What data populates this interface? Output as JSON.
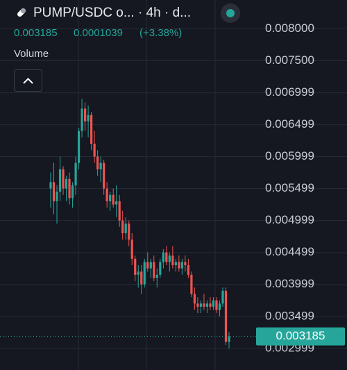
{
  "chart_data": {
    "type": "candlestick",
    "title": "PUMP/USDC o... · 4h · d...",
    "price": 0.003185,
    "change": "0.0001039",
    "change_percent": "(+3.38%)",
    "indicator": "Volume",
    "last_price": 0.003185,
    "up_color": "#26a69a",
    "down_color": "#ef5350",
    "grid": true,
    "ylim": [
      0.00266,
      0.00845
    ],
    "yticks": [
      {
        "value": 0.008,
        "label": "0.008000"
      },
      {
        "value": 0.0075,
        "label": "0.007500"
      },
      0.006999,
      0.006499,
      0.005999,
      0.005499,
      0.004999,
      0.004499,
      0.003999,
      0.003499,
      0.002999
    ],
    "ohlc": [
      [
        0.0055,
        0.00575,
        0.0052,
        0.0056
      ],
      [
        0.0056,
        0.0059,
        0.0051,
        0.0053
      ],
      [
        0.0053,
        0.00555,
        0.00495,
        0.00545
      ],
      [
        0.00545,
        0.006,
        0.0053,
        0.0058
      ],
      [
        0.0058,
        0.00585,
        0.0054,
        0.0055
      ],
      [
        0.0055,
        0.0057,
        0.0053,
        0.00565
      ],
      [
        0.00565,
        0.00575,
        0.00525,
        0.00535
      ],
      [
        0.00535,
        0.0056,
        0.0052,
        0.00555
      ],
      [
        0.00555,
        0.006,
        0.0054,
        0.0059
      ],
      [
        0.0059,
        0.00645,
        0.0058,
        0.0064
      ],
      [
        0.0064,
        0.0069,
        0.0063,
        0.00675
      ],
      [
        0.00675,
        0.00685,
        0.0064,
        0.00655
      ],
      [
        0.00655,
        0.0068,
        0.0063,
        0.00665
      ],
      [
        0.00665,
        0.0067,
        0.0061,
        0.0062
      ],
      [
        0.0062,
        0.0064,
        0.0059,
        0.006
      ],
      [
        0.006,
        0.0061,
        0.0057,
        0.0058
      ],
      [
        0.0058,
        0.006,
        0.0056,
        0.0059
      ],
      [
        0.0059,
        0.00595,
        0.0054,
        0.0055
      ],
      [
        0.0055,
        0.0056,
        0.0052,
        0.0053
      ],
      [
        0.0053,
        0.00545,
        0.00515,
        0.0054
      ],
      [
        0.0054,
        0.0055,
        0.0052,
        0.00525
      ],
      [
        0.00525,
        0.00555,
        0.00505,
        0.0053
      ],
      [
        0.0053,
        0.0054,
        0.0049,
        0.005
      ],
      [
        0.005,
        0.00515,
        0.0047,
        0.0048
      ],
      [
        0.0048,
        0.00505,
        0.0047,
        0.00495
      ],
      [
        0.00495,
        0.005,
        0.0046,
        0.0047
      ],
      [
        0.0047,
        0.0048,
        0.0043,
        0.0044
      ],
      [
        0.0044,
        0.00445,
        0.00405,
        0.00415
      ],
      [
        0.00415,
        0.0043,
        0.00395,
        0.0042
      ],
      [
        0.0042,
        0.0043,
        0.00385,
        0.004
      ],
      [
        0.004,
        0.0044,
        0.00395,
        0.00435
      ],
      [
        0.00435,
        0.0045,
        0.0042,
        0.00425
      ],
      [
        0.00425,
        0.0044,
        0.0041,
        0.00435
      ],
      [
        0.00435,
        0.00445,
        0.00405,
        0.0041
      ],
      [
        0.0041,
        0.00425,
        0.00395,
        0.00415
      ],
      [
        0.00415,
        0.0044,
        0.0041,
        0.00435
      ],
      [
        0.00435,
        0.00455,
        0.00425,
        0.0045
      ],
      [
        0.0045,
        0.0046,
        0.0043,
        0.00435
      ],
      [
        0.00435,
        0.0045,
        0.0042,
        0.00445
      ],
      [
        0.00445,
        0.0046,
        0.00425,
        0.0043
      ],
      [
        0.0043,
        0.0044,
        0.0042,
        0.00435
      ],
      [
        0.00435,
        0.00445,
        0.0042,
        0.00425
      ],
      [
        0.00425,
        0.0044,
        0.00415,
        0.00435
      ],
      [
        0.00435,
        0.00445,
        0.0042,
        0.0043
      ],
      [
        0.0043,
        0.0044,
        0.0041,
        0.00415
      ],
      [
        0.00415,
        0.0042,
        0.0038,
        0.00385
      ],
      [
        0.00385,
        0.00395,
        0.0036,
        0.0037
      ],
      [
        0.0037,
        0.0038,
        0.00355,
        0.00365
      ],
      [
        0.00365,
        0.00375,
        0.00355,
        0.0037
      ],
      [
        0.0037,
        0.00385,
        0.0036,
        0.00365
      ],
      [
        0.00365,
        0.00375,
        0.00355,
        0.0037
      ],
      [
        0.0037,
        0.0038,
        0.0036,
        0.00365
      ],
      [
        0.00365,
        0.0038,
        0.0036,
        0.00375
      ],
      [
        0.00375,
        0.0038,
        0.00355,
        0.0036
      ],
      [
        0.0036,
        0.00375,
        0.0035,
        0.0037
      ],
      [
        0.0037,
        0.00395,
        0.00365,
        0.0039
      ],
      [
        0.0039,
        0.00395,
        0.00305,
        0.0031
      ],
      [
        0.0031,
        0.00325,
        0.003,
        0.003185
      ]
    ]
  }
}
